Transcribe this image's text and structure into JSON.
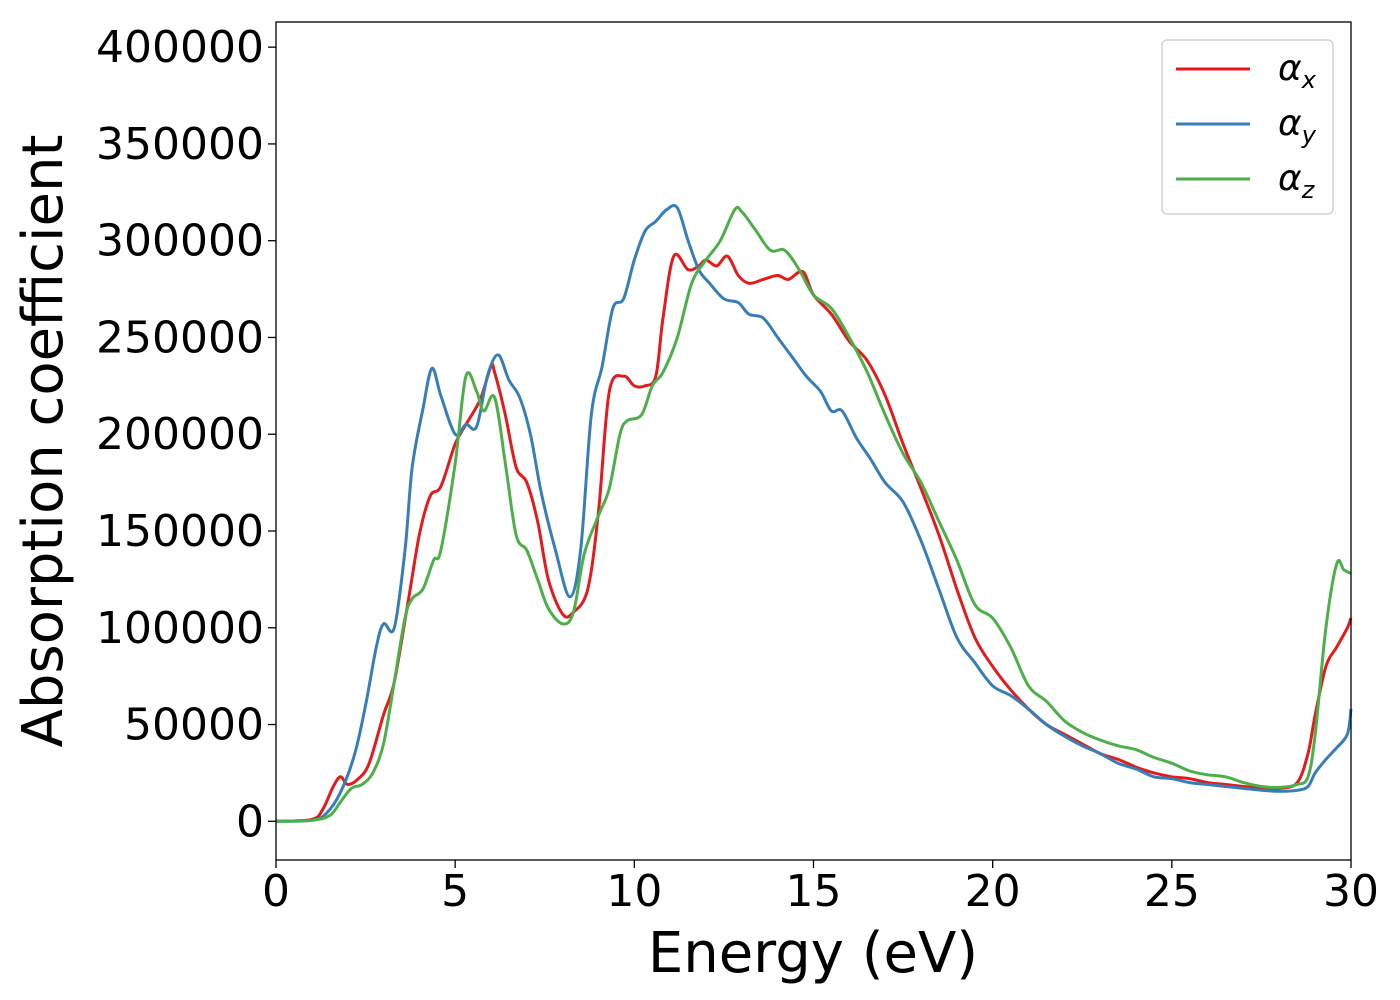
{
  "chart_data": {
    "type": "line",
    "title": "",
    "xlabel": "Energy (eV)",
    "ylabel": "Absorption coefficient",
    "xlim": [
      0,
      30
    ],
    "ylim": [
      -20000,
      413000
    ],
    "xticks": [
      0,
      5,
      10,
      15,
      20,
      25,
      30
    ],
    "yticks": [
      0,
      50000,
      100000,
      150000,
      200000,
      250000,
      300000,
      350000,
      400000
    ],
    "xtick_labels": [
      "0",
      "5",
      "10",
      "15",
      "20",
      "25",
      "30"
    ],
    "ytick_labels": [
      "0",
      "50000",
      "100000",
      "150000",
      "200000",
      "250000",
      "300000",
      "350000",
      "400000"
    ],
    "grid": false,
    "legend_position": "top-right",
    "series": [
      {
        "name": "αx",
        "symbol": "α",
        "subscript": "x",
        "color": "#e41a1c",
        "x": [
          0,
          1.0,
          1.3,
          1.6,
          1.8,
          2.0,
          2.3,
          2.6,
          3.0,
          3.3,
          3.7,
          4.0,
          4.3,
          4.6,
          5.0,
          5.3,
          5.7,
          6.0,
          6.1,
          6.4,
          6.7,
          7.0,
          7.3,
          7.6,
          8.0,
          8.3,
          8.7,
          9.0,
          9.3,
          9.7,
          10.0,
          10.3,
          10.6,
          10.8,
          11.1,
          11.5,
          11.8,
          12.0,
          12.3,
          12.6,
          12.9,
          13.2,
          13.6,
          14.0,
          14.3,
          14.7,
          15.0,
          15.5,
          16.0,
          16.5,
          17.0,
          17.5,
          18.0,
          18.5,
          19.0,
          19.5,
          20.0,
          20.5,
          21.0,
          21.5,
          22.0,
          22.5,
          23.0,
          23.5,
          24.0,
          24.5,
          25.0,
          25.5,
          26.0,
          26.5,
          27.0,
          27.5,
          28.0,
          28.5,
          28.8,
          29.0,
          29.3,
          29.6,
          29.9,
          30.0
        ],
        "y": [
          0,
          1000,
          6000,
          18000,
          23000,
          19000,
          22000,
          30000,
          55000,
          72000,
          115000,
          148000,
          168000,
          173000,
          195000,
          205000,
          218000,
          235000,
          232000,
          210000,
          183000,
          175000,
          155000,
          125000,
          107000,
          108000,
          120000,
          160000,
          222000,
          230000,
          225000,
          225000,
          230000,
          260000,
          292000,
          285000,
          287000,
          290000,
          287000,
          292000,
          282000,
          278000,
          280000,
          282000,
          280000,
          284000,
          272000,
          262000,
          248000,
          238000,
          220000,
          195000,
          172000,
          148000,
          120000,
          95000,
          80000,
          68000,
          58000,
          50000,
          45000,
          40000,
          35000,
          32000,
          28000,
          25000,
          23000,
          22000,
          20000,
          19000,
          18000,
          17000,
          17000,
          20000,
          35000,
          55000,
          80000,
          90000,
          100000,
          105000
        ]
      },
      {
        "name": "αy",
        "symbol": "α",
        "subscript": "y",
        "color": "#377eb8",
        "x": [
          0,
          1.0,
          1.4,
          1.8,
          2.2,
          2.5,
          2.8,
          3.0,
          3.3,
          3.6,
          3.8,
          4.1,
          4.35,
          4.6,
          5.0,
          5.3,
          5.6,
          5.9,
          6.2,
          6.5,
          6.8,
          7.1,
          7.4,
          7.8,
          8.2,
          8.5,
          8.8,
          9.1,
          9.4,
          9.7,
          10.0,
          10.3,
          10.6,
          10.9,
          11.2,
          11.5,
          11.8,
          12.1,
          12.5,
          12.9,
          13.2,
          13.6,
          14.0,
          14.4,
          14.8,
          15.2,
          15.5,
          15.8,
          16.2,
          16.6,
          17.0,
          17.5,
          18.0,
          18.5,
          19.0,
          19.5,
          20.0,
          20.5,
          21.0,
          21.5,
          22.0,
          22.5,
          23.0,
          23.5,
          24.0,
          24.5,
          25.0,
          25.5,
          26.0,
          26.5,
          27.0,
          27.5,
          28.0,
          28.5,
          28.8,
          29.0,
          29.3,
          29.6,
          29.9,
          30.0
        ],
        "y": [
          0,
          500,
          4000,
          15000,
          35000,
          60000,
          90000,
          102000,
          100000,
          140000,
          183000,
          213000,
          234000,
          220000,
          200000,
          205000,
          204000,
          230000,
          241000,
          228000,
          219000,
          200000,
          170000,
          140000,
          116000,
          140000,
          210000,
          235000,
          265000,
          270000,
          290000,
          305000,
          310000,
          316000,
          317000,
          300000,
          285000,
          278000,
          270000,
          268000,
          262000,
          260000,
          250000,
          240000,
          230000,
          222000,
          212000,
          212000,
          198000,
          187000,
          175000,
          165000,
          145000,
          120000,
          95000,
          82000,
          70000,
          65000,
          58000,
          50000,
          44000,
          39000,
          35000,
          30000,
          27000,
          23000,
          22000,
          20000,
          19000,
          18000,
          17000,
          16000,
          15500,
          16000,
          18000,
          25000,
          32000,
          38000,
          45000,
          58000
        ]
      },
      {
        "name": "αz",
        "symbol": "α",
        "subscript": "z",
        "color": "#4daf4a",
        "x": [
          0,
          1.0,
          1.5,
          1.8,
          2.1,
          2.4,
          2.7,
          3.0,
          3.3,
          3.6,
          3.8,
          4.1,
          4.4,
          4.6,
          5.0,
          5.3,
          5.6,
          5.8,
          6.1,
          6.4,
          6.7,
          7.0,
          7.3,
          7.6,
          8.0,
          8.3,
          8.6,
          9.0,
          9.3,
          9.6,
          9.8,
          10.2,
          10.5,
          10.8,
          11.2,
          11.6,
          12.0,
          12.4,
          12.8,
          13.0,
          13.4,
          13.8,
          14.2,
          14.6,
          15.0,
          15.5,
          16.0,
          16.5,
          17.0,
          17.5,
          18.0,
          18.5,
          19.0,
          19.5,
          20.0,
          20.5,
          21.0,
          21.5,
          22.0,
          22.5,
          23.0,
          23.5,
          24.0,
          24.5,
          25.0,
          25.5,
          26.0,
          26.5,
          27.0,
          27.5,
          28.0,
          28.5,
          28.8,
          29.0,
          29.3,
          29.6,
          29.8,
          30.0
        ],
        "y": [
          0,
          500,
          3000,
          10000,
          17000,
          19000,
          25000,
          40000,
          72000,
          105000,
          115000,
          120000,
          135000,
          140000,
          185000,
          230000,
          222000,
          212000,
          219000,
          185000,
          148000,
          140000,
          125000,
          110000,
          102000,
          108000,
          138000,
          158000,
          172000,
          200000,
          207000,
          210000,
          225000,
          232000,
          250000,
          278000,
          290000,
          300000,
          316000,
          315000,
          305000,
          295000,
          295000,
          285000,
          272000,
          265000,
          250000,
          232000,
          210000,
          190000,
          175000,
          155000,
          135000,
          112000,
          105000,
          90000,
          70000,
          62000,
          52000,
          46000,
          42000,
          39000,
          37000,
          33000,
          30000,
          26000,
          24000,
          23000,
          20000,
          18000,
          17500,
          19000,
          23000,
          45000,
          100000,
          133000,
          130000,
          128000
        ]
      }
    ]
  }
}
